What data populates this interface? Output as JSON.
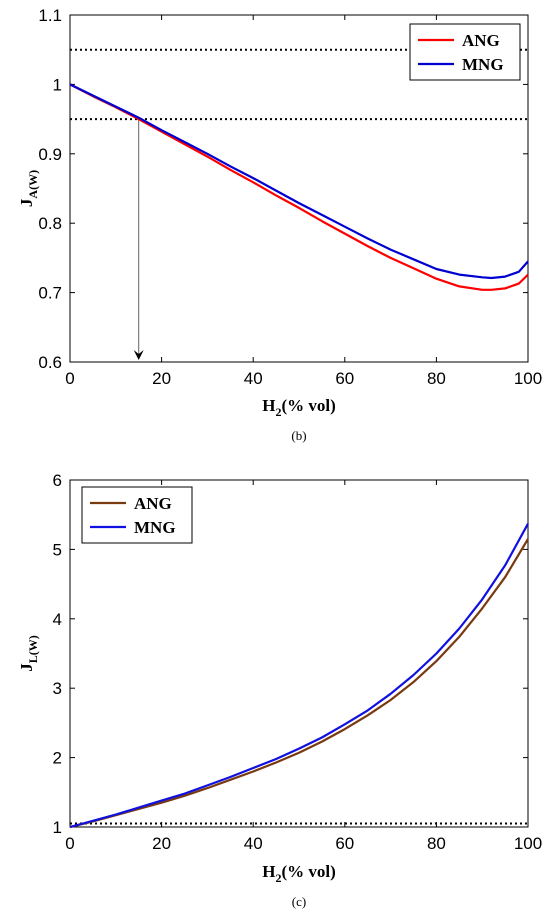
{
  "chart_data": [
    {
      "type": "line",
      "panel_label": "(b)",
      "xlabel_main": "H",
      "xlabel_sub": "2",
      "xlabel_rest": "(% vol)",
      "ylabel_main": "J",
      "ylabel_sub": "A(W)",
      "xlim": [
        0,
        100
      ],
      "ylim": [
        0.6,
        1.1
      ],
      "xticks": [
        0,
        20,
        40,
        60,
        80,
        100
      ],
      "yticks": [
        0.6,
        0.7,
        0.8,
        0.9,
        1,
        1.1
      ],
      "ytick_labels": [
        "0.6",
        "0.7",
        "0.8",
        "0.9",
        "1",
        "1.1"
      ],
      "grid": false,
      "legend_position": "top-right",
      "reference_lines": [
        1.05,
        0.95
      ],
      "annotation": {
        "type": "arrow",
        "x": 15,
        "from_y": 0.95,
        "to_y": 0.6
      },
      "x": [
        0,
        5,
        10,
        15,
        20,
        25,
        30,
        35,
        40,
        45,
        50,
        55,
        60,
        65,
        70,
        75,
        80,
        85,
        90,
        92,
        95,
        98,
        100
      ],
      "series": [
        {
          "name": "ANG",
          "color": "#ff0000",
          "values": [
            1.0,
            0.983,
            0.967,
            0.95,
            0.932,
            0.914,
            0.896,
            0.877,
            0.859,
            0.84,
            0.822,
            0.803,
            0.785,
            0.767,
            0.75,
            0.735,
            0.72,
            0.709,
            0.704,
            0.704,
            0.706,
            0.713,
            0.726
          ]
        },
        {
          "name": "MNG",
          "color": "#0000d0",
          "values": [
            1.0,
            0.984,
            0.968,
            0.952,
            0.934,
            0.917,
            0.9,
            0.882,
            0.865,
            0.847,
            0.829,
            0.812,
            0.795,
            0.778,
            0.762,
            0.748,
            0.734,
            0.726,
            0.722,
            0.721,
            0.723,
            0.73,
            0.745
          ]
        }
      ]
    },
    {
      "type": "line",
      "panel_label": "(c)",
      "xlabel_main": "H",
      "xlabel_sub": "2",
      "xlabel_rest": "(% vol)",
      "ylabel_main": "J",
      "ylabel_sub": "L(W)",
      "xlim": [
        0,
        100
      ],
      "ylim": [
        1,
        6
      ],
      "xticks": [
        0,
        20,
        40,
        60,
        80,
        100
      ],
      "yticks": [
        1,
        2,
        3,
        4,
        5,
        6
      ],
      "ytick_labels": [
        "1",
        "2",
        "3",
        "4",
        "5",
        "6"
      ],
      "grid": false,
      "legend_position": "top-left",
      "reference_lines": [
        1.05
      ],
      "x": [
        0,
        5,
        10,
        15,
        20,
        25,
        30,
        35,
        40,
        45,
        50,
        55,
        60,
        65,
        70,
        75,
        80,
        85,
        90,
        95,
        100
      ],
      "series": [
        {
          "name": "ANG",
          "color": "#7a3a10",
          "values": [
            1.0,
            1.08,
            1.17,
            1.26,
            1.35,
            1.45,
            1.56,
            1.68,
            1.8,
            1.93,
            2.07,
            2.23,
            2.41,
            2.61,
            2.83,
            3.09,
            3.39,
            3.74,
            4.15,
            4.6,
            5.15
          ]
        },
        {
          "name": "MNG",
          "color": "#1010e0",
          "values": [
            1.0,
            1.09,
            1.18,
            1.28,
            1.38,
            1.48,
            1.6,
            1.72,
            1.85,
            1.98,
            2.13,
            2.29,
            2.48,
            2.68,
            2.92,
            3.19,
            3.5,
            3.86,
            4.28,
            4.77,
            5.37
          ]
        }
      ]
    }
  ]
}
